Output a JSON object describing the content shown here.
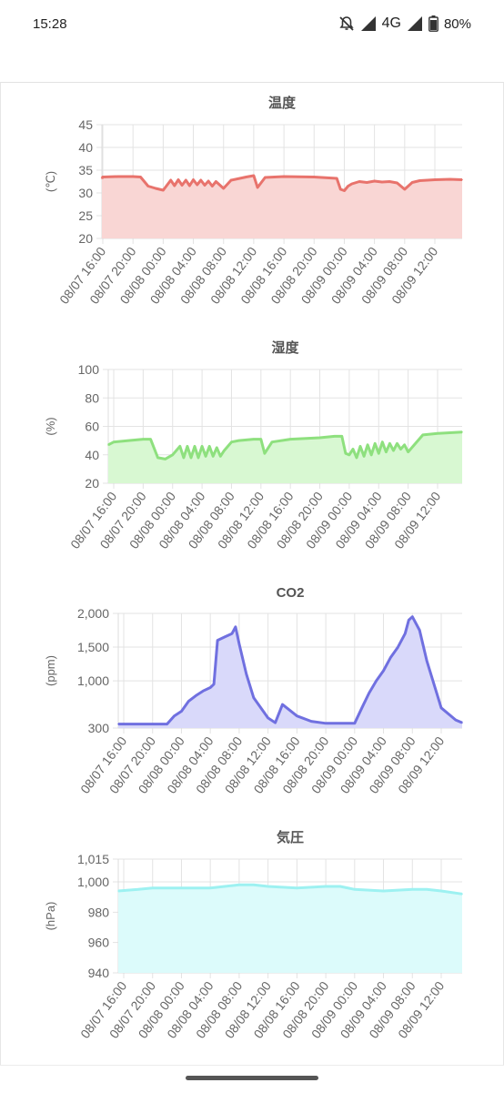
{
  "status_bar": {
    "time": "15:28",
    "network": "4G",
    "battery": "80%",
    "icons": [
      "mute-bell-icon",
      "signal-icon",
      "signal-icon",
      "battery-icon"
    ]
  },
  "chart_data": [
    {
      "type": "line",
      "fill": "area",
      "title": "温度",
      "ylabel": "(℃)",
      "color": "#e8736c",
      "fill_color": "#f9d6d4",
      "ylim": [
        20,
        45
      ],
      "yticks": [
        "20",
        "25",
        "30",
        "35",
        "40",
        "45"
      ],
      "xticks": [
        "08/07 16:00",
        "08/07 20:00",
        "08/08 00:00",
        "08/08 04:00",
        "08/08 08:00",
        "08/08 12:00",
        "08/08 16:00",
        "08/08 20:00",
        "08/09 00:00",
        "08/09 04:00",
        "08/09 08:00",
        "08/09 12:00"
      ],
      "x": [
        "08/07 15:00",
        "08/07 16:00",
        "08/07 18:00",
        "08/07 20:00",
        "08/07 21:00",
        "08/07 22:00",
        "08/07 23:00",
        "08/08 00:00",
        "08/08 01:00",
        "08/08 01:30",
        "08/08 02:00",
        "08/08 02:30",
        "08/08 03:00",
        "08/08 03:30",
        "08/08 04:00",
        "08/08 04:30",
        "08/08 05:00",
        "08/08 05:30",
        "08/08 06:00",
        "08/08 06:30",
        "08/08 07:00",
        "08/08 08:00",
        "08/08 09:00",
        "08/08 11:00",
        "08/08 12:00",
        "08/08 12:30",
        "08/08 13:30",
        "08/08 16:00",
        "08/08 20:00",
        "08/08 22:00",
        "08/08 23:00",
        "08/08 23:30",
        "08/09 00:00",
        "08/09 00:30",
        "08/09 01:00",
        "08/09 02:00",
        "08/09 03:00",
        "08/09 04:00",
        "08/09 05:00",
        "08/09 06:00",
        "08/09 07:00",
        "08/09 08:00",
        "08/09 09:00",
        "08/09 10:00",
        "08/09 12:00",
        "08/09 14:00",
        "08/09 15:00"
      ],
      "values": [
        33.2,
        33.5,
        33.6,
        33.6,
        33.5,
        31.5,
        31.0,
        30.6,
        32.8,
        31.6,
        32.9,
        31.7,
        32.8,
        31.6,
        32.9,
        31.8,
        32.8,
        31.7,
        32.6,
        31.5,
        32.5,
        31.0,
        32.8,
        33.5,
        33.8,
        31.2,
        33.4,
        33.6,
        33.5,
        33.3,
        33.2,
        30.8,
        30.5,
        31.5,
        32.0,
        32.5,
        32.3,
        32.6,
        32.4,
        32.5,
        32.2,
        30.8,
        32.3,
        32.7,
        32.9,
        33.0,
        32.9
      ]
    },
    {
      "type": "line",
      "fill": "area",
      "title": "湿度",
      "ylabel": "(%)",
      "color": "#8ee07e",
      "fill_color": "#d8f8d2",
      "ylim": [
        20,
        100
      ],
      "yticks": [
        "20",
        "40",
        "60",
        "80",
        "100"
      ],
      "xticks": [
        "08/07 16:00",
        "08/07 20:00",
        "08/08 00:00",
        "08/08 04:00",
        "08/08 08:00",
        "08/08 12:00",
        "08/08 16:00",
        "08/08 20:00",
        "08/09 00:00",
        "08/09 04:00",
        "08/09 08:00",
        "08/09 12:00"
      ],
      "x": [
        "08/07 15:00",
        "08/07 16:00",
        "08/07 18:00",
        "08/07 20:00",
        "08/07 21:00",
        "08/07 22:00",
        "08/07 23:00",
        "08/08 00:00",
        "08/08 01:00",
        "08/08 01:30",
        "08/08 02:00",
        "08/08 02:30",
        "08/08 03:00",
        "08/08 03:30",
        "08/08 04:00",
        "08/08 04:30",
        "08/08 05:00",
        "08/08 05:30",
        "08/08 06:00",
        "08/08 06:30",
        "08/08 07:00",
        "08/08 08:00",
        "08/08 09:00",
        "08/08 11:00",
        "08/08 12:00",
        "08/08 12:30",
        "08/08 13:30",
        "08/08 16:00",
        "08/08 20:00",
        "08/08 22:00",
        "08/08 23:00",
        "08/08 23:30",
        "08/09 00:00",
        "08/09 00:30",
        "08/09 01:00",
        "08/09 01:30",
        "08/09 02:00",
        "08/09 02:30",
        "08/09 03:00",
        "08/09 03:30",
        "08/09 04:00",
        "08/09 04:30",
        "08/09 05:00",
        "08/09 05:30",
        "08/09 06:00",
        "08/09 06:30",
        "08/09 07:00",
        "08/09 07:30",
        "08/09 08:00",
        "08/09 10:00",
        "08/09 12:00",
        "08/09 15:00"
      ],
      "values": [
        47,
        49,
        50,
        51,
        51,
        38,
        37,
        40,
        46,
        38,
        46,
        38,
        46,
        38,
        46,
        39,
        46,
        39,
        45,
        39,
        43,
        49,
        50,
        51,
        51,
        41,
        49,
        51,
        52,
        53,
        53,
        41,
        40,
        44,
        38,
        46,
        39,
        47,
        40,
        48,
        41,
        49,
        42,
        48,
        43,
        48,
        44,
        47,
        42,
        54,
        55,
        56
      ]
    },
    {
      "type": "line",
      "fill": "area",
      "title": "CO2",
      "ylabel": "(ppm)",
      "color": "#7070e0",
      "fill_color": "#d9d9fa",
      "ylim": [
        300,
        2000
      ],
      "yticks": [
        "300",
        "1,000",
        "1,500",
        "2,000"
      ],
      "xticks": [
        "08/07 16:00",
        "08/07 20:00",
        "08/08 00:00",
        "08/08 04:00",
        "08/08 08:00",
        "08/08 12:00",
        "08/08 16:00",
        "08/08 20:00",
        "08/09 00:00",
        "08/09 04:00",
        "08/09 08:00",
        "08/09 12:00"
      ],
      "x": [
        "08/07 15:00",
        "08/07 16:00",
        "08/07 18:00",
        "08/07 20:00",
        "08/07 21:00",
        "08/07 22:00",
        "08/07 23:00",
        "08/08 00:00",
        "08/08 01:00",
        "08/08 02:00",
        "08/08 03:00",
        "08/08 04:00",
        "08/08 04:30",
        "08/08 05:00",
        "08/08 06:00",
        "08/08 07:00",
        "08/08 07:30",
        "08/08 08:00",
        "08/08 09:00",
        "08/08 10:00",
        "08/08 11:00",
        "08/08 12:00",
        "08/08 13:00",
        "08/08 14:00",
        "08/08 16:00",
        "08/08 18:00",
        "08/08 20:00",
        "08/08 22:00",
        "08/08 23:00",
        "08/09 00:00",
        "08/09 01:00",
        "08/09 02:00",
        "08/09 03:00",
        "08/09 04:00",
        "08/09 05:00",
        "08/09 06:00",
        "08/09 07:00",
        "08/09 07:30",
        "08/09 08:00",
        "08/09 09:00",
        "08/09 10:00",
        "08/09 12:00",
        "08/09 14:00",
        "08/09 15:00"
      ],
      "values": [
        360,
        360,
        360,
        360,
        360,
        360,
        480,
        550,
        700,
        780,
        850,
        900,
        950,
        1600,
        1650,
        1700,
        1800,
        1550,
        1100,
        750,
        600,
        450,
        380,
        650,
        480,
        400,
        370,
        370,
        370,
        370,
        600,
        820,
        1000,
        1150,
        1350,
        1500,
        1700,
        1900,
        1950,
        1750,
        1300,
        600,
        420,
        380
      ]
    },
    {
      "type": "line",
      "fill": "area",
      "title": "気圧",
      "ylabel": "(hPa)",
      "color": "#9df1f1",
      "fill_color": "#dcfbfb",
      "ylim": [
        940,
        1015
      ],
      "yticks": [
        "940",
        "960",
        "980",
        "1,000",
        "1,015"
      ],
      "xticks": [
        "08/07 16:00",
        "08/07 20:00",
        "08/08 00:00",
        "08/08 04:00",
        "08/08 08:00",
        "08/08 12:00",
        "08/08 16:00",
        "08/08 20:00",
        "08/09 00:00",
        "08/09 04:00",
        "08/09 08:00",
        "08/09 12:00"
      ],
      "x": [
        "08/07 15:00",
        "08/07 18:00",
        "08/07 20:00",
        "08/08 00:00",
        "08/08 04:00",
        "08/08 06:00",
        "08/08 08:00",
        "08/08 10:00",
        "08/08 12:00",
        "08/08 16:00",
        "08/08 20:00",
        "08/08 22:00",
        "08/09 00:00",
        "08/09 04:00",
        "08/09 08:00",
        "08/09 10:00",
        "08/09 12:00",
        "08/09 15:00"
      ],
      "values": [
        994,
        995,
        996,
        996,
        996,
        997,
        998,
        998,
        997,
        996,
        997,
        997,
        995,
        994,
        995,
        995,
        994,
        992
      ]
    }
  ]
}
